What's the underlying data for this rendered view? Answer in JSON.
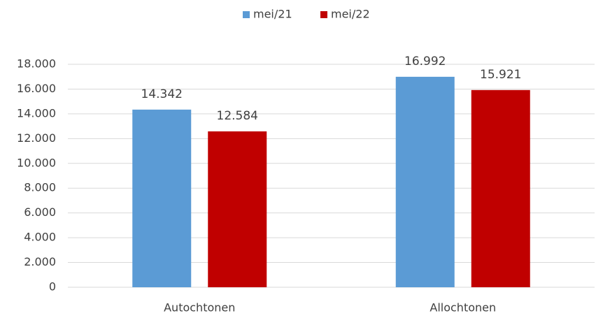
{
  "chart_data": {
    "type": "bar",
    "categories": [
      "Autochtonen",
      "Allochtonen"
    ],
    "series": [
      {
        "name": "mei/21",
        "color": "#5b9bd5",
        "values": [
          14342,
          16992
        ],
        "value_labels": [
          "14.342",
          "16.992"
        ]
      },
      {
        "name": "mei/22",
        "color": "#c00000",
        "values": [
          12584,
          15921
        ],
        "value_labels": [
          "12.584",
          "15.921"
        ]
      }
    ],
    "ylim": [
      0,
      18000
    ],
    "yticks": [
      0,
      {
        "value": 2000,
        "label": "2.000"
      },
      {
        "value": 4000,
        "label": "4.000"
      },
      {
        "value": 6000,
        "label": "6.000"
      },
      {
        "value": 8000,
        "label": "8.000"
      },
      {
        "value": 10000,
        "label": "10.000"
      },
      {
        "value": 12000,
        "label": "12.000"
      },
      {
        "value": 14000,
        "label": "14.000"
      },
      {
        "value": 16000,
        "label": "16.000"
      },
      {
        "value": 18000,
        "label": "18.000"
      }
    ],
    "grid": true,
    "legend": "top"
  }
}
